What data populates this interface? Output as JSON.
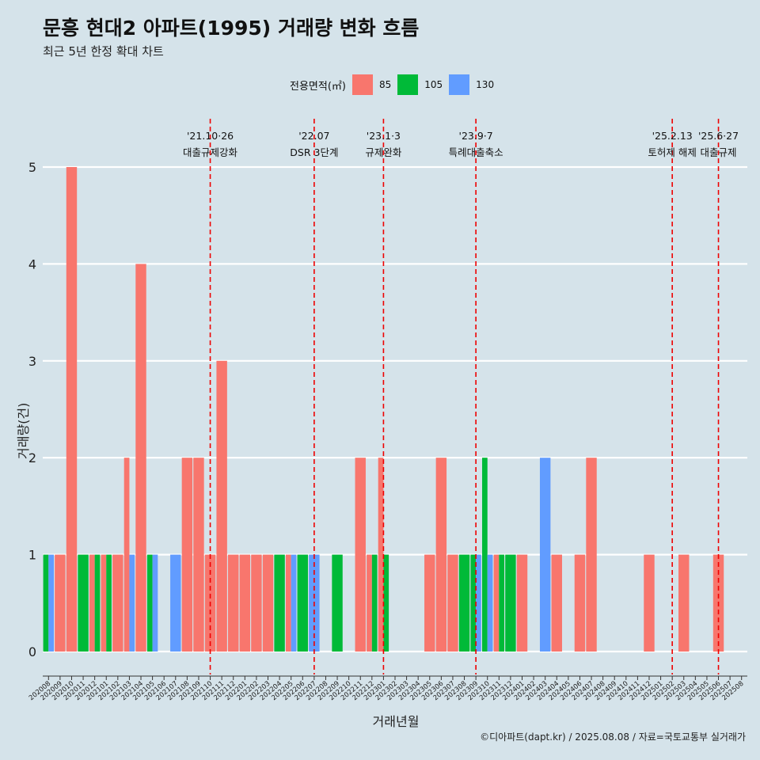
{
  "title": "문흥 현대2 아파트(1995) 거래량 변화 흐름",
  "subtitle": "최근 5년 한정 확대 차트",
  "caption": "©디아파트(dapt.kr) / 2025.08.08 / 자료=국토교통부 실거래가",
  "legend": {
    "title": "전용면적(㎡)",
    "items": [
      {
        "label": "85",
        "color": "#f8766d"
      },
      {
        "label": "105",
        "color": "#00ba38"
      },
      {
        "label": "130",
        "color": "#619cff"
      }
    ]
  },
  "chart_data": {
    "type": "bar",
    "title": "문흥 현대2 아파트(1995) 거래량 변화 흐름",
    "subtitle": "최근 5년 한정 확대 차트",
    "xlabel": "거래년월",
    "ylabel": "거래량(건)",
    "ylim": [
      0,
      5
    ],
    "yticks": [
      0,
      1,
      2,
      3,
      4,
      5
    ],
    "grid": "horizontal",
    "legend_position": "top",
    "categories": [
      "202008",
      "202009",
      "202010",
      "202011",
      "202012",
      "202101",
      "202102",
      "202103",
      "202104",
      "202105",
      "202106",
      "202107",
      "202108",
      "202109",
      "202110",
      "202111",
      "202112",
      "202201",
      "202202",
      "202203",
      "202204",
      "202205",
      "202206",
      "202207",
      "202208",
      "202209",
      "202210",
      "202211",
      "202212",
      "202301",
      "202302",
      "202303",
      "202304",
      "202305",
      "202306",
      "202307",
      "202308",
      "202309",
      "202310",
      "202311",
      "202312",
      "202401",
      "202402",
      "202403",
      "202404",
      "202405",
      "202406",
      "202407",
      "202408",
      "202409",
      "202410",
      "202411",
      "202412",
      "202501",
      "202502",
      "202503",
      "202504",
      "202505",
      "202506",
      "202507",
      "202508"
    ],
    "series": [
      {
        "name": "85",
        "color": "#f8766d",
        "values": [
          0,
          1,
          5,
          0,
          1,
          1,
          1,
          2,
          4,
          0,
          0,
          0,
          2,
          2,
          1,
          3,
          1,
          1,
          1,
          1,
          0,
          1,
          0,
          0,
          0,
          0,
          0,
          2,
          1,
          2,
          0,
          0,
          0,
          1,
          2,
          1,
          0,
          0,
          0,
          1,
          0,
          1,
          0,
          0,
          1,
          0,
          1,
          2,
          0,
          0,
          0,
          0,
          1,
          0,
          0,
          1,
          0,
          0,
          1,
          0,
          0
        ]
      },
      {
        "name": "105",
        "color": "#00ba38",
        "values": [
          1,
          0,
          0,
          1,
          1,
          1,
          0,
          0,
          0,
          1,
          0,
          0,
          0,
          0,
          0,
          0,
          0,
          0,
          0,
          0,
          1,
          0,
          1,
          0,
          0,
          1,
          0,
          0,
          1,
          1,
          0,
          0,
          0,
          0,
          0,
          0,
          1,
          1,
          2,
          1,
          1,
          0,
          0,
          0,
          0,
          0,
          0,
          0,
          0,
          0,
          0,
          0,
          0,
          0,
          0,
          0,
          0,
          0,
          0,
          0,
          0
        ]
      },
      {
        "name": "130",
        "color": "#619cff",
        "values": [
          1,
          0,
          0,
          0,
          0,
          0,
          0,
          1,
          0,
          1,
          0,
          1,
          0,
          0,
          0,
          0,
          0,
          0,
          0,
          0,
          0,
          1,
          0,
          1,
          0,
          0,
          0,
          0,
          0,
          0,
          0,
          0,
          0,
          0,
          0,
          0,
          0,
          1,
          1,
          0,
          0,
          0,
          0,
          2,
          0,
          0,
          0,
          0,
          0,
          0,
          0,
          0,
          0,
          0,
          0,
          0,
          0,
          0,
          0,
          0,
          0
        ]
      }
    ],
    "annotations": [
      {
        "at": "202110",
        "date": "'21.10·26",
        "label": "대출규제강화"
      },
      {
        "at": "202207",
        "date": "'22.07",
        "label": "DSR 3단계"
      },
      {
        "at": "202301",
        "date": "'23.1·3",
        "label": "규제완화"
      },
      {
        "at": "202309",
        "date": "'23.9·7",
        "label": "특례대출축소"
      },
      {
        "at": "202502",
        "date": "'25.2.13",
        "label": "토허제 해제"
      },
      {
        "at": "202506",
        "date": "'25.6·27",
        "label": "대출규제"
      }
    ]
  }
}
